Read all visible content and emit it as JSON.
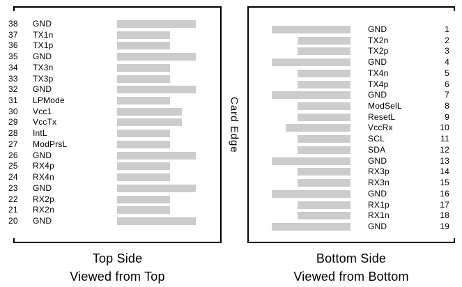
{
  "palette": {
    "pad_color": "#cccccc",
    "border_color": "#000000",
    "text_color": "#000000"
  },
  "card_edge_label": "Card Edge",
  "pad_widths": {
    "long": 113,
    "medium": 93,
    "short": 76
  },
  "left_panel": {
    "caption_line1": "Top Side",
    "caption_line2": "Viewed from Top",
    "pins": [
      {
        "number": "38",
        "name": "GND",
        "pad": "long"
      },
      {
        "number": "37",
        "name": "TX1n",
        "pad": "short"
      },
      {
        "number": "36",
        "name": "TX1p",
        "pad": "short"
      },
      {
        "number": "35",
        "name": "GND",
        "pad": "long"
      },
      {
        "number": "34",
        "name": "TX3n",
        "pad": "short"
      },
      {
        "number": "33",
        "name": "TX3p",
        "pad": "short"
      },
      {
        "number": "32",
        "name": "GND",
        "pad": "long"
      },
      {
        "number": "31",
        "name": "LPMode",
        "pad": "short"
      },
      {
        "number": "30",
        "name": "Vcc1",
        "pad": "medium"
      },
      {
        "number": "29",
        "name": "VccTx",
        "pad": "medium"
      },
      {
        "number": "28",
        "name": "IntL",
        "pad": "short"
      },
      {
        "number": "27",
        "name": "ModPrsL",
        "pad": "short"
      },
      {
        "number": "26",
        "name": "GND",
        "pad": "long"
      },
      {
        "number": "25",
        "name": "RX4p",
        "pad": "short"
      },
      {
        "number": "24",
        "name": "RX4n",
        "pad": "short"
      },
      {
        "number": "23",
        "name": "GND",
        "pad": "long"
      },
      {
        "number": "22",
        "name": "RX2p",
        "pad": "short"
      },
      {
        "number": "21",
        "name": "RX2n",
        "pad": "short"
      },
      {
        "number": "20",
        "name": "GND",
        "pad": "long"
      }
    ]
  },
  "right_panel": {
    "caption_line1": "Bottom Side",
    "caption_line2": "Viewed from Bottom",
    "pins": [
      {
        "number": "1",
        "name": "GND",
        "pad": "long"
      },
      {
        "number": "2",
        "name": "TX2n",
        "pad": "short"
      },
      {
        "number": "3",
        "name": "TX2p",
        "pad": "short"
      },
      {
        "number": "4",
        "name": "GND",
        "pad": "long"
      },
      {
        "number": "5",
        "name": "TX4n",
        "pad": "short"
      },
      {
        "number": "6",
        "name": "TX4p",
        "pad": "short"
      },
      {
        "number": "7",
        "name": "GND",
        "pad": "long"
      },
      {
        "number": "8",
        "name": "ModSelL",
        "pad": "short"
      },
      {
        "number": "9",
        "name": "ResetL",
        "pad": "short"
      },
      {
        "number": "10",
        "name": "VccRx",
        "pad": "medium"
      },
      {
        "number": "11",
        "name": "SCL",
        "pad": "short"
      },
      {
        "number": "12",
        "name": "SDA",
        "pad": "short"
      },
      {
        "number": "13",
        "name": "GND",
        "pad": "long"
      },
      {
        "number": "14",
        "name": "RX3p",
        "pad": "short"
      },
      {
        "number": "15",
        "name": "RX3n",
        "pad": "short"
      },
      {
        "number": "16",
        "name": "GND",
        "pad": "long"
      },
      {
        "number": "17",
        "name": "RX1p",
        "pad": "short"
      },
      {
        "number": "18",
        "name": "RX1n",
        "pad": "short"
      },
      {
        "number": "19",
        "name": "GND",
        "pad": "long"
      }
    ]
  }
}
